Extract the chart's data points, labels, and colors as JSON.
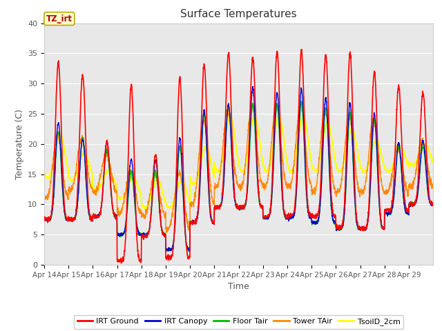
{
  "title": "Surface Temperatures",
  "ylabel": "Temperature (C)",
  "xlabel": "Time",
  "ylim": [
    0,
    40
  ],
  "yticks": [
    0,
    5,
    10,
    15,
    20,
    25,
    30,
    35,
    40
  ],
  "plot_bg_color": "#e8e8e8",
  "series": [
    {
      "name": "IRT Ground",
      "color": "#ff0000"
    },
    {
      "name": "IRT Canopy",
      "color": "#0000cc"
    },
    {
      "name": "Floor Tair",
      "color": "#00bb00"
    },
    {
      "name": "Tower TAir",
      "color": "#ff8800"
    },
    {
      "name": "TsoilD_2cm",
      "color": "#ffff00"
    }
  ],
  "annotation_text": "TZ_irt",
  "annotation_color": "#aa0000",
  "annotation_bg": "#ffffcc",
  "annotation_border": "#bbaa00",
  "date_labels": [
    "Apr 14",
    "Apr 15",
    "Apr 16",
    "Apr 17",
    "Apr 18",
    "Apr 19",
    "Apr 20",
    "Apr 21",
    "Apr 22",
    "Apr 23",
    "Apr 24",
    "Apr 25",
    "Apr 26",
    "Apr 27",
    "Apr 28",
    "Apr 29"
  ],
  "n_days": 16,
  "points_per_day": 144,
  "irt_ground_peaks": [
    33.5,
    31.5,
    20.5,
    29.8,
    18.3,
    31.0,
    33.0,
    35.0,
    34.2,
    35.2,
    35.3,
    34.8,
    35.1,
    32.0,
    29.5,
    28.5
  ],
  "irt_ground_mins": [
    7.5,
    7.5,
    8.0,
    0.7,
    4.8,
    1.2,
    7.0,
    9.5,
    9.5,
    8.0,
    8.2,
    8.0,
    6.2,
    6.0,
    9.0,
    10.0
  ],
  "canopy_peaks": [
    23.5,
    20.8,
    20.3,
    17.5,
    17.3,
    21.0,
    25.5,
    26.5,
    29.3,
    28.5,
    29.0,
    27.5,
    26.8,
    25.0,
    20.2,
    20.5
  ],
  "canopy_mins": [
    7.5,
    7.5,
    8.0,
    5.0,
    5.0,
    2.5,
    7.0,
    9.5,
    9.5,
    7.8,
    7.8,
    7.0,
    6.0,
    6.0,
    8.5,
    10.0
  ],
  "floor_peaks": [
    22.0,
    21.0,
    19.0,
    15.5,
    15.5,
    19.5,
    25.0,
    26.5,
    26.5,
    26.5,
    27.0,
    26.0,
    25.0,
    24.0,
    19.5,
    19.5
  ],
  "floor_mins": [
    7.5,
    7.5,
    8.0,
    5.0,
    5.0,
    2.5,
    7.0,
    9.5,
    9.5,
    7.8,
    7.8,
    7.0,
    6.0,
    6.0,
    8.5,
    10.0
  ],
  "tower_peaks": [
    21.5,
    21.0,
    18.5,
    15.5,
    15.0,
    15.0,
    24.0,
    25.5,
    26.5,
    26.5,
    26.5,
    25.5,
    24.5,
    24.0,
    19.5,
    20.5
  ],
  "tower_mins": [
    11.0,
    12.5,
    12.0,
    8.5,
    8.0,
    6.0,
    10.0,
    13.0,
    13.0,
    13.0,
    13.0,
    12.0,
    12.0,
    12.0,
    12.0,
    13.0
  ],
  "soil_peaks": [
    21.5,
    18.5,
    15.5,
    14.5,
    14.0,
    14.0,
    19.5,
    24.5,
    24.5,
    24.5,
    24.5,
    23.5,
    22.5,
    20.5,
    19.5,
    20.0
  ],
  "soil_mins": [
    14.5,
    14.0,
    12.5,
    11.0,
    9.5,
    9.5,
    13.5,
    15.5,
    15.5,
    15.5,
    15.5,
    15.5,
    15.5,
    15.5,
    15.5,
    16.5
  ],
  "peak_phase": 0.58,
  "peak_sharpness": 3.5,
  "soil_phase": 0.65,
  "soil_sharpness": 1.2
}
